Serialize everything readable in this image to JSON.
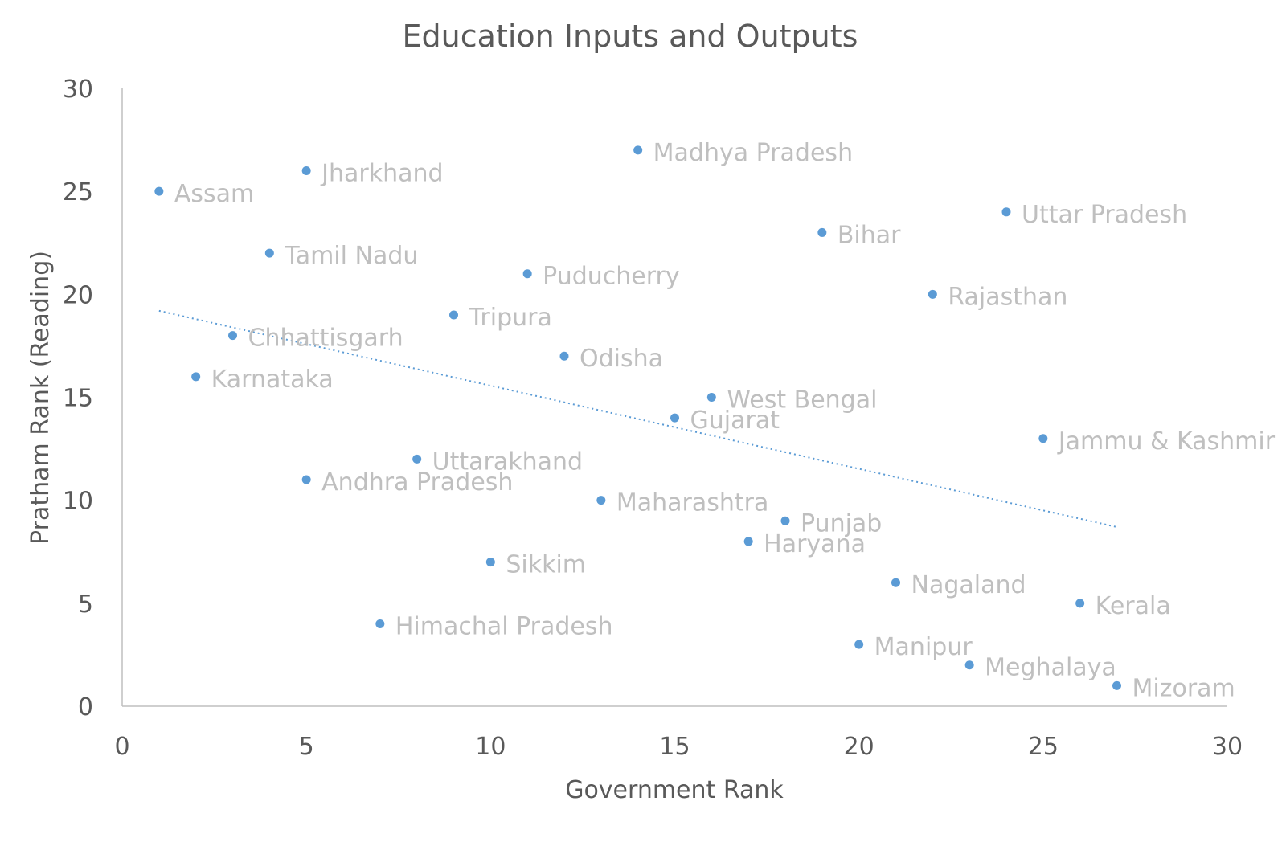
{
  "chart_data": {
    "type": "scatter",
    "title": "Education Inputs and Outputs",
    "xlabel": "Government Rank",
    "ylabel": "Pratham Rank (Reading)",
    "xlim": [
      0,
      30
    ],
    "ylim": [
      0,
      30
    ],
    "xticks": [
      0,
      5,
      10,
      15,
      20,
      25,
      30
    ],
    "yticks": [
      0,
      5,
      10,
      15,
      20,
      25,
      30
    ],
    "grid": false,
    "legend": "none",
    "marker_color": "#5b9bd5",
    "label_color": "#bfbfbf",
    "trendline": {
      "type": "linear",
      "style": "dotted",
      "color": "#5b9bd5",
      "x_range": [
        1,
        27
      ],
      "y_start": 19.2,
      "y_end": 8.7
    },
    "points": [
      {
        "label": "Assam",
        "x": 1,
        "y": 25
      },
      {
        "label": "Karnataka",
        "x": 2,
        "y": 16
      },
      {
        "label": "Chhattisgarh",
        "x": 3,
        "y": 18
      },
      {
        "label": "Tamil Nadu",
        "x": 4,
        "y": 22
      },
      {
        "label": "Jharkhand",
        "x": 5,
        "y": 26
      },
      {
        "label": "Andhra Pradesh",
        "x": 5,
        "y": 11
      },
      {
        "label": "Himachal Pradesh",
        "x": 7,
        "y": 4
      },
      {
        "label": "Uttarakhand",
        "x": 8,
        "y": 12
      },
      {
        "label": "Tripura",
        "x": 9,
        "y": 19
      },
      {
        "label": "Sikkim",
        "x": 10,
        "y": 7
      },
      {
        "label": "Puducherry",
        "x": 11,
        "y": 21
      },
      {
        "label": "Odisha",
        "x": 12,
        "y": 17
      },
      {
        "label": "Maharashtra",
        "x": 13,
        "y": 10
      },
      {
        "label": "Madhya Pradesh",
        "x": 14,
        "y": 27
      },
      {
        "label": "Gujarat",
        "x": 15,
        "y": 14
      },
      {
        "label": "West Bengal",
        "x": 16,
        "y": 15
      },
      {
        "label": "Haryana",
        "x": 17,
        "y": 8
      },
      {
        "label": "Punjab",
        "x": 18,
        "y": 9
      },
      {
        "label": "Bihar",
        "x": 19,
        "y": 23
      },
      {
        "label": "Manipur",
        "x": 20,
        "y": 3
      },
      {
        "label": "Nagaland",
        "x": 21,
        "y": 6
      },
      {
        "label": "Rajasthan",
        "x": 22,
        "y": 20
      },
      {
        "label": "Meghalaya",
        "x": 23,
        "y": 2
      },
      {
        "label": "Uttar Pradesh",
        "x": 24,
        "y": 24
      },
      {
        "label": "Jammu & Kashmir",
        "x": 25,
        "y": 13
      },
      {
        "label": "Kerala",
        "x": 26,
        "y": 5
      },
      {
        "label": "Mizoram",
        "x": 27,
        "y": 1
      }
    ]
  }
}
